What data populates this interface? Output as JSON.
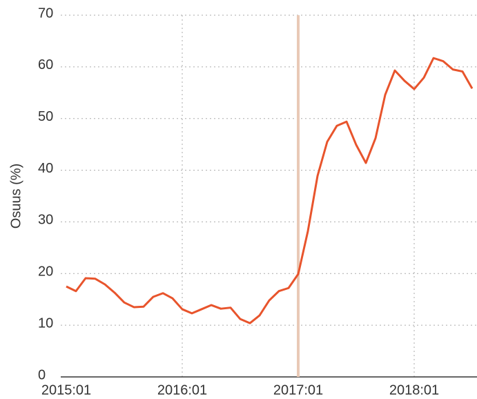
{
  "chart_data": {
    "type": "line",
    "y_label": "Osuus (%)",
    "categories": [
      "2015:01",
      null,
      null,
      null,
      null,
      null,
      null,
      null,
      null,
      null,
      null,
      null,
      "2016:01",
      null,
      null,
      null,
      null,
      null,
      null,
      null,
      null,
      null,
      null,
      null,
      "2017:01",
      null,
      null,
      null,
      null,
      null,
      null,
      null,
      null,
      null,
      null,
      null,
      "2018:01",
      null,
      null,
      null,
      null,
      null,
      null
    ],
    "series": [
      {
        "name": "Osuus",
        "color": "#e8542c",
        "values": [
          17.5,
          16.6,
          19.1,
          19.0,
          17.9,
          16.3,
          14.4,
          13.5,
          13.6,
          15.5,
          16.2,
          15.2,
          13.1,
          12.3,
          13.1,
          13.9,
          13.2,
          13.4,
          11.2,
          10.4,
          11.9,
          14.8,
          16.6,
          17.2,
          19.9,
          28.2,
          38.9,
          45.5,
          48.6,
          49.4,
          44.9,
          41.4,
          46.2,
          54.6,
          59.3,
          57.3,
          55.7,
          57.9,
          61.7,
          61.1,
          59.5,
          59.1,
          55.8
        ]
      }
    ],
    "vline": "2017:01",
    "vline_color": "#e9c9b6",
    "ylim": [
      0,
      70
    ],
    "yticks": [
      0,
      10,
      20,
      30,
      40,
      50,
      60,
      70
    ],
    "grid": true
  }
}
